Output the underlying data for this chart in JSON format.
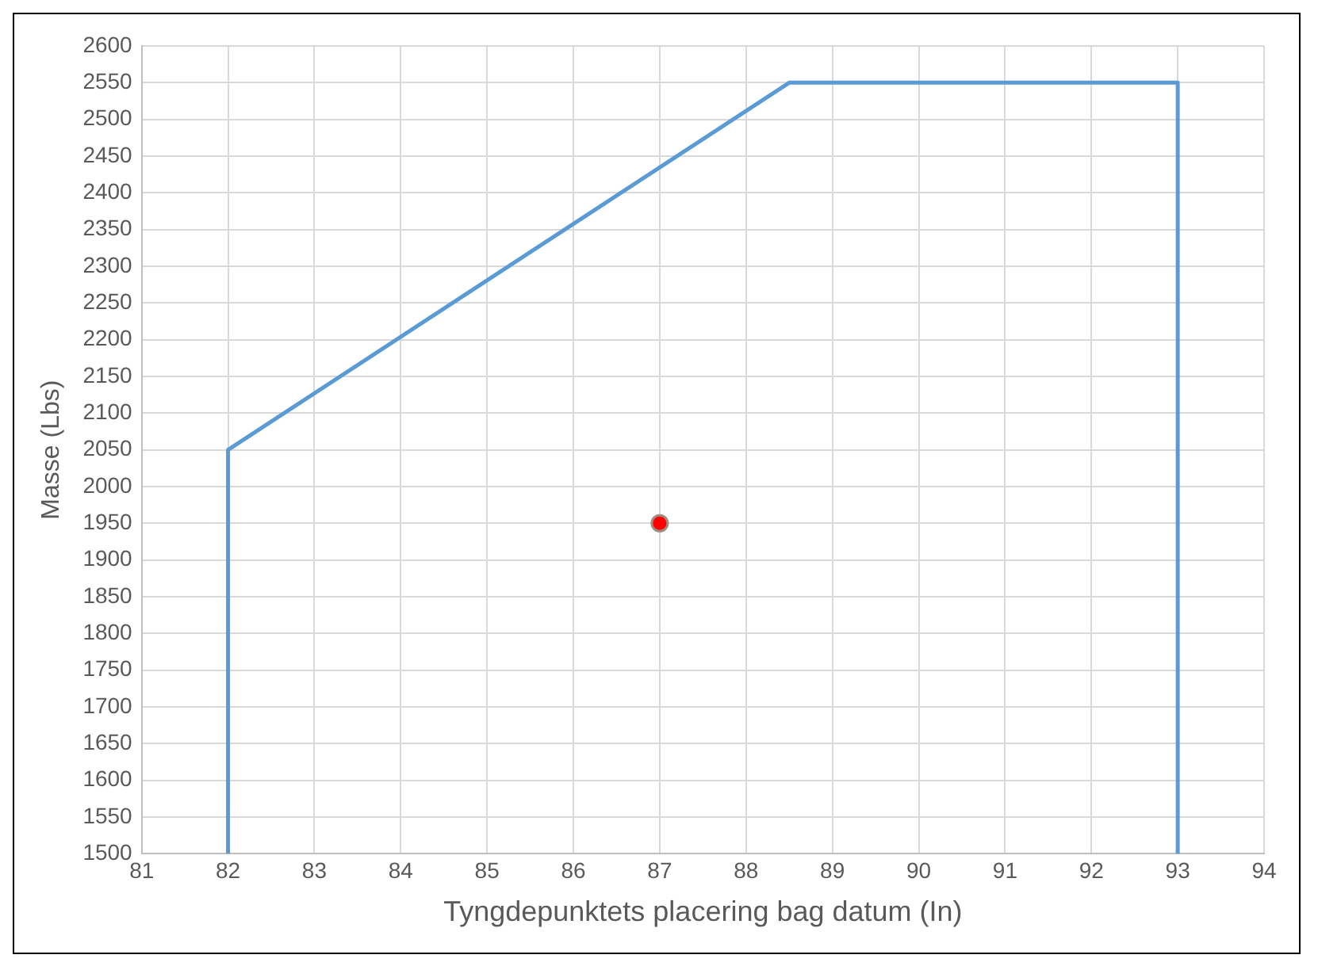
{
  "chart_data": {
    "type": "line",
    "xlabel": "Tyngdepunktets placering bag datum (In)",
    "ylabel": "Masse (Lbs)",
    "series": [
      {
        "marker": "none",
        "color": "#5b9bd5",
        "x": [
          82,
          82,
          88.5,
          93,
          93
        ],
        "values": [
          1500,
          2050,
          2550,
          2550,
          1500
        ]
      },
      {
        "type": "scatter",
        "marker": "circle",
        "color": "#ff0000",
        "x": [
          87
        ],
        "values": [
          1950
        ]
      }
    ],
    "xlim": [
      81,
      94
    ],
    "xticks": [
      81,
      82,
      83,
      84,
      85,
      86,
      87,
      88,
      89,
      90,
      91,
      92,
      93,
      94
    ],
    "ylim": [
      1500,
      2600
    ],
    "yticks": [
      1500,
      1550,
      1600,
      1650,
      1700,
      1750,
      1800,
      1850,
      1900,
      1950,
      2000,
      2050,
      2100,
      2150,
      2200,
      2250,
      2300,
      2350,
      2400,
      2450,
      2500,
      2550,
      2600
    ],
    "grid": true,
    "legend": false,
    "line_style": "solid"
  }
}
